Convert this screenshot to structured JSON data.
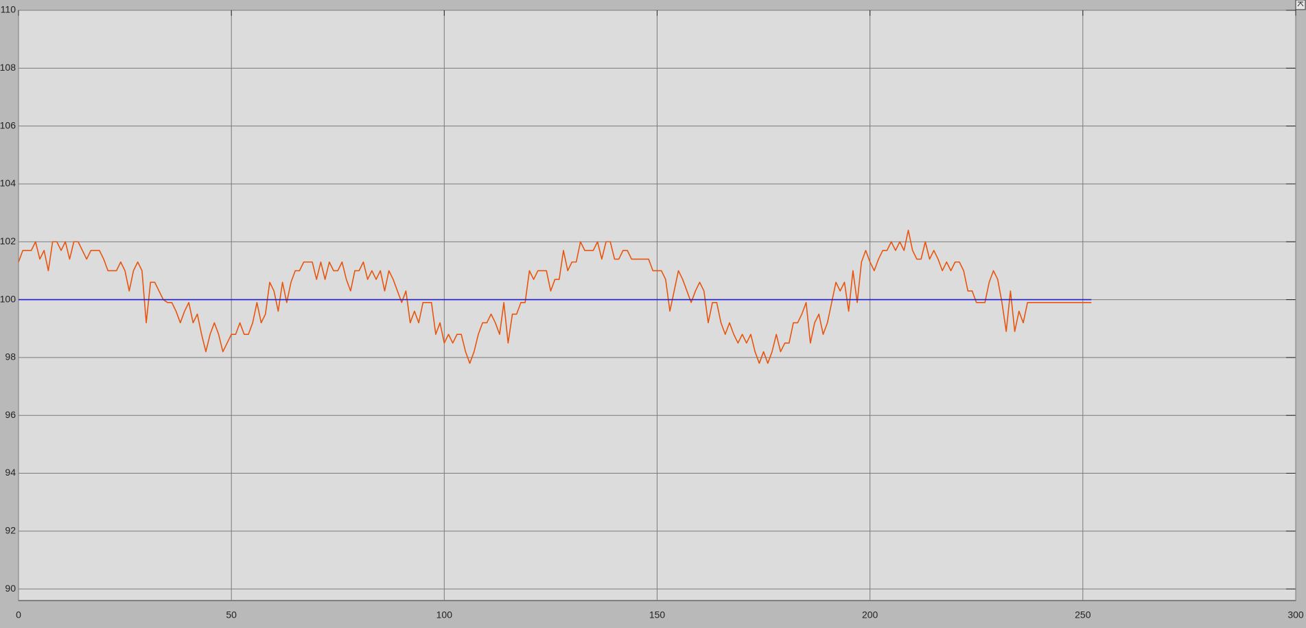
{
  "chart_data": {
    "type": "line",
    "xlim": [
      0,
      300
    ],
    "xticks": [
      0,
      50,
      100,
      150,
      200,
      250,
      300
    ],
    "ylim": [
      89.6,
      110
    ],
    "yticks": [
      90,
      92,
      94,
      96,
      98,
      100,
      102,
      104,
      106,
      108,
      110
    ],
    "grid": true,
    "series": [
      {
        "color": "#e8540c",
        "x": [
          0,
          1,
          2,
          3,
          4,
          5,
          6,
          7,
          8,
          9,
          10,
          11,
          12,
          13,
          14,
          15,
          16,
          17,
          18,
          19,
          20,
          21,
          22,
          23,
          24,
          25,
          26,
          27,
          28,
          29,
          30,
          31,
          32,
          33,
          34,
          35,
          36,
          37,
          38,
          39,
          40,
          41,
          42,
          43,
          44,
          45,
          46,
          47,
          48,
          49,
          50,
          51,
          52,
          53,
          54,
          55,
          56,
          57,
          58,
          59,
          60,
          61,
          62,
          63,
          64,
          65,
          66,
          67,
          68,
          69,
          70,
          71,
          72,
          73,
          74,
          75,
          76,
          77,
          78,
          79,
          80,
          81,
          82,
          83,
          84,
          85,
          86,
          87,
          88,
          89,
          90,
          91,
          92,
          93,
          94,
          95,
          96,
          97,
          98,
          99,
          100,
          101,
          102,
          103,
          104,
          105,
          106,
          107,
          108,
          109,
          110,
          111,
          112,
          113,
          114,
          115,
          116,
          117,
          118,
          119,
          120,
          121,
          122,
          123,
          124,
          125,
          126,
          127,
          128,
          129,
          130,
          131,
          132,
          133,
          134,
          135,
          136,
          137,
          138,
          139,
          140,
          141,
          142,
          143,
          144,
          145,
          146,
          147,
          148,
          149,
          150,
          151,
          152,
          153,
          154,
          155,
          156,
          157,
          158,
          159,
          160,
          161,
          162,
          163,
          164,
          165,
          166,
          167,
          168,
          169,
          170,
          171,
          172,
          173,
          174,
          175,
          176,
          177,
          178,
          179,
          180,
          181,
          182,
          183,
          184,
          185,
          186,
          187,
          188,
          189,
          190,
          191,
          192,
          193,
          194,
          195,
          196,
          197,
          198,
          199,
          200,
          201,
          202,
          203,
          204,
          205,
          206,
          207,
          208,
          209,
          210,
          211,
          212,
          213,
          214,
          215,
          216,
          217,
          218,
          219,
          220,
          221,
          222,
          223,
          224,
          225,
          226,
          227,
          228,
          229,
          230,
          231,
          232,
          233,
          234,
          235,
          236,
          237,
          238,
          239,
          240,
          241,
          242,
          243,
          244,
          245,
          246,
          247,
          248,
          249,
          250,
          251,
          252
        ],
        "values": [
          101.3,
          101.7,
          101.7,
          101.7,
          102.0,
          101.4,
          101.7,
          101.0,
          102.0,
          102.0,
          101.7,
          102.0,
          101.4,
          102.0,
          102.0,
          101.7,
          101.4,
          101.7,
          101.7,
          101.7,
          101.4,
          101.0,
          101.0,
          101.0,
          101.3,
          101.0,
          100.3,
          101.0,
          101.3,
          101.0,
          99.2,
          100.6,
          100.6,
          100.3,
          100.0,
          99.9,
          99.9,
          99.6,
          99.2,
          99.6,
          99.9,
          99.2,
          99.5,
          98.8,
          98.2,
          98.8,
          99.2,
          98.8,
          98.2,
          98.5,
          98.8,
          98.8,
          99.2,
          98.8,
          98.8,
          99.2,
          99.9,
          99.2,
          99.5,
          100.6,
          100.3,
          99.6,
          100.6,
          99.9,
          100.6,
          101.0,
          101.0,
          101.3,
          101.3,
          101.3,
          100.7,
          101.3,
          100.7,
          101.3,
          101.0,
          101.0,
          101.3,
          100.7,
          100.3,
          101.0,
          101.0,
          101.3,
          100.7,
          101.0,
          100.7,
          101.0,
          100.3,
          101.0,
          100.7,
          100.3,
          99.9,
          100.3,
          99.2,
          99.6,
          99.2,
          99.9,
          99.9,
          99.9,
          98.8,
          99.2,
          98.5,
          98.8,
          98.5,
          98.8,
          98.8,
          98.2,
          97.8,
          98.2,
          98.8,
          99.2,
          99.2,
          99.5,
          99.2,
          98.8,
          99.9,
          98.5,
          99.5,
          99.5,
          99.9,
          99.9,
          101.0,
          100.7,
          101.0,
          101.0,
          101.0,
          100.3,
          100.7,
          100.7,
          101.7,
          101.0,
          101.3,
          101.3,
          102.0,
          101.7,
          101.7,
          101.7,
          102.0,
          101.4,
          102.0,
          102.0,
          101.4,
          101.4,
          101.7,
          101.7,
          101.4,
          101.4,
          101.4,
          101.4,
          101.4,
          101.0,
          101.0,
          101.0,
          100.7,
          99.6,
          100.3,
          101.0,
          100.7,
          100.3,
          99.9,
          100.3,
          100.6,
          100.3,
          99.2,
          99.9,
          99.9,
          99.2,
          98.8,
          99.2,
          98.8,
          98.5,
          98.8,
          98.5,
          98.8,
          98.2,
          97.8,
          98.2,
          97.8,
          98.2,
          98.8,
          98.2,
          98.5,
          98.5,
          99.2,
          99.2,
          99.5,
          99.9,
          98.5,
          99.2,
          99.5,
          98.8,
          99.2,
          99.9,
          100.6,
          100.3,
          100.6,
          99.6,
          101.0,
          99.9,
          101.3,
          101.7,
          101.3,
          101.0,
          101.4,
          101.7,
          101.7,
          102.0,
          101.7,
          102.0,
          101.7,
          102.4,
          101.7,
          101.4,
          101.4,
          102.0,
          101.4,
          101.7,
          101.4,
          101.0,
          101.3,
          101.0,
          101.3,
          101.3,
          101.0,
          100.3,
          100.3,
          99.9,
          99.9,
          99.9,
          100.6,
          101.0,
          100.7,
          99.9,
          98.9,
          100.3,
          98.9,
          99.6,
          99.2,
          99.9,
          99.9,
          99.9,
          99.9,
          99.9,
          99.9,
          99.9,
          99.9,
          99.9,
          99.9,
          99.9,
          99.9,
          99.9,
          99.9,
          99.9,
          99.9
        ]
      },
      {
        "color": "#1f1fd0",
        "x": [
          0,
          252
        ],
        "values": [
          100,
          100
        ]
      }
    ]
  }
}
